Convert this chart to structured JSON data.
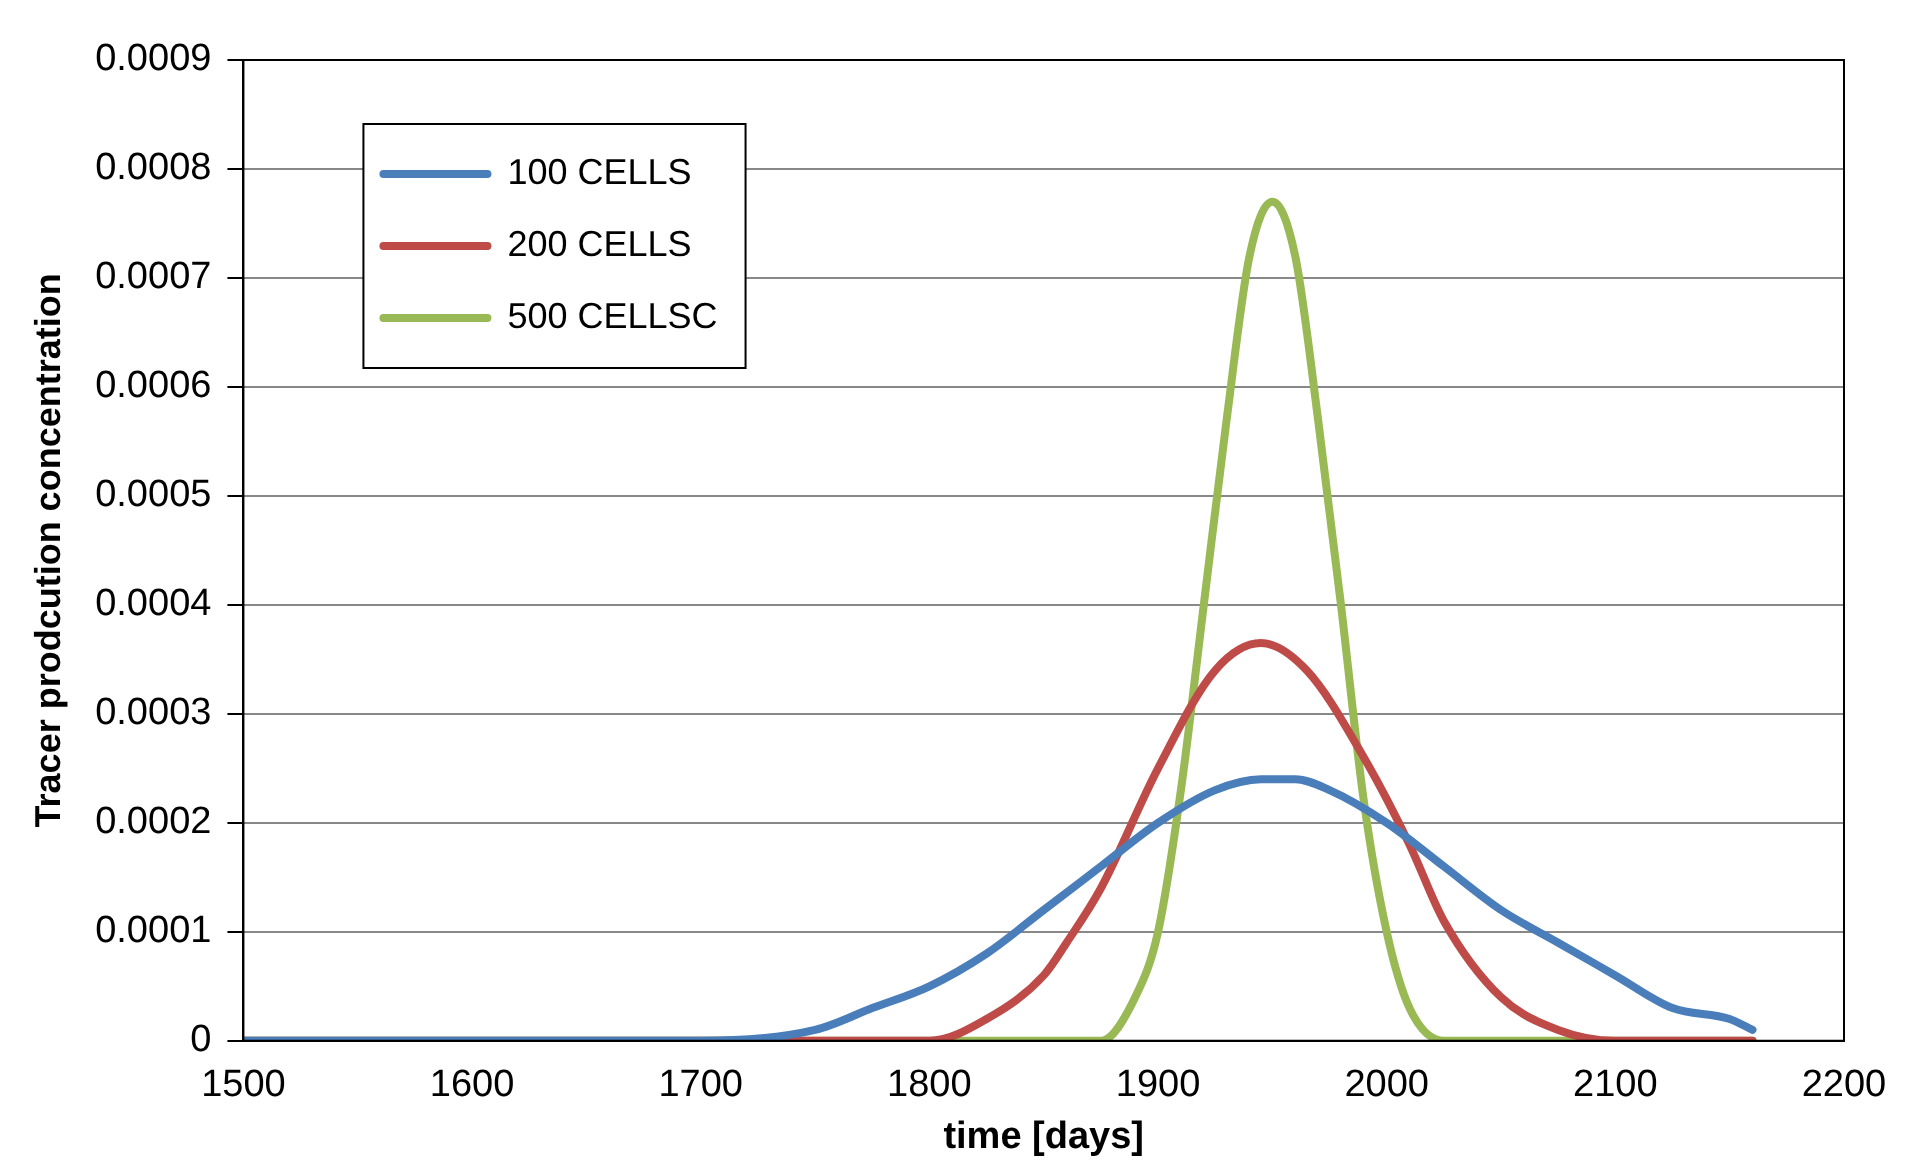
{
  "chart_data": {
    "type": "line",
    "xlabel": "time [days]",
    "ylabel": "Tracer prodcution concentration",
    "xlim": [
      1500,
      2200
    ],
    "xticks": [
      1500,
      1600,
      1700,
      1800,
      1900,
      2000,
      2100,
      2200
    ],
    "ylim": [
      0,
      0.0009
    ],
    "yticks": [
      0,
      0.0001,
      0.0002,
      0.0003,
      0.0004,
      0.0005,
      0.0006,
      0.0007,
      0.0008,
      0.0009
    ],
    "grid": "y",
    "legend": "top left",
    "marker": "none",
    "line_style": "solid",
    "series": [
      {
        "name": "100 CELLS",
        "color": "#4a7ebb",
        "x": [
          1500,
          1600,
          1700,
          1750,
          1775,
          1800,
          1825,
          1850,
          1875,
          1900,
          1925,
          1945,
          1960,
          1975,
          2000,
          2025,
          2050,
          2075,
          2100,
          2125,
          2150,
          2160
        ],
        "values": [
          0,
          0,
          0,
          1e-05,
          3e-05,
          5e-05,
          8e-05,
          0.00012,
          0.00016,
          0.0002,
          0.00023,
          0.00024,
          0.00024,
          0.00023,
          0.0002,
          0.00016,
          0.00012,
          9e-05,
          6e-05,
          3e-05,
          2e-05,
          1e-05
        ]
      },
      {
        "name": "200 CELLS",
        "color": "#be4b48",
        "x": [
          1500,
          1700,
          1800,
          1825,
          1850,
          1860,
          1875,
          1900,
          1925,
          1945,
          1965,
          1990,
          2010,
          2025,
          2050,
          2075,
          2100,
          2160
        ],
        "values": [
          0,
          0,
          0,
          2e-05,
          6e-05,
          9e-05,
          0.00014,
          0.00025,
          0.00034,
          0.000365,
          0.00034,
          0.00026,
          0.00018,
          0.00011,
          4e-05,
          1e-05,
          0,
          0
        ]
      },
      {
        "name": "500 CELLSC",
        "color": "#98b954",
        "x": [
          1500,
          1875,
          1890,
          1900,
          1910,
          1920,
          1930,
          1940,
          1950,
          1960,
          1970,
          1980,
          1990,
          2000,
          2010,
          2025,
          2160
        ],
        "values": [
          0,
          0,
          4e-05,
          0.0001,
          0.00023,
          0.0004,
          0.00057,
          0.00072,
          0.00077,
          0.00072,
          0.00057,
          0.0004,
          0.00022,
          0.0001,
          3e-05,
          0,
          0
        ]
      }
    ]
  }
}
